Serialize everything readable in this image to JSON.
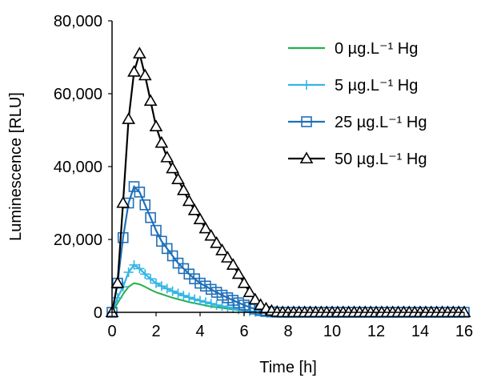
{
  "chart_data": {
    "type": "line",
    "title": "",
    "xlabel": "Time [h]",
    "ylabel": "Luminescence [RLU]",
    "xlim": [
      0,
      16
    ],
    "ylim": [
      0,
      80000
    ],
    "x_ticks": [
      0,
      2,
      4,
      6,
      8,
      10,
      12,
      14,
      16
    ],
    "x_tick_labels": [
      "0",
      "2",
      "4",
      "6",
      "8",
      "10",
      "12",
      "14",
      "16"
    ],
    "y_ticks": [
      0,
      20000,
      40000,
      60000,
      80000
    ],
    "y_tick_labels": [
      "0",
      "20,000",
      "40,000",
      "60,000",
      "80,000"
    ],
    "grid": false,
    "legend_position": "top-right",
    "x": [
      0,
      0.25,
      0.5,
      0.75,
      1,
      1.25,
      1.5,
      1.75,
      2,
      2.25,
      2.5,
      2.75,
      3,
      3.25,
      3.5,
      3.75,
      4,
      4.25,
      4.5,
      4.75,
      5,
      5.25,
      5.5,
      5.75,
      6,
      6.25,
      6.5,
      6.75,
      7,
      7.25,
      7.5,
      7.75,
      8,
      8.25,
      8.5,
      8.75,
      9,
      9.25,
      9.5,
      9.75,
      10,
      10.25,
      10.5,
      10.75,
      11,
      11.25,
      11.5,
      11.75,
      12,
      12.25,
      12.5,
      12.75,
      13,
      13.25,
      13.5,
      13.75,
      14,
      14.25,
      14.5,
      14.75,
      15,
      15.25,
      15.5,
      15.75,
      16
    ],
    "series": [
      {
        "name": "0 µg.L⁻¹ Hg",
        "color": "#22b14c",
        "marker": "none",
        "values": [
          0,
          2500,
          5000,
          7000,
          8000,
          7700,
          7000,
          6200,
          5500,
          5000,
          4500,
          4000,
          3600,
          3200,
          2800,
          2500,
          2200,
          1900,
          1600,
          1400,
          1200,
          1000,
          800,
          600,
          400,
          250,
          120,
          50,
          20,
          0,
          0,
          0,
          0,
          0,
          0,
          0,
          0,
          0,
          0,
          0,
          0,
          0,
          0,
          0,
          0,
          0,
          0,
          0,
          0,
          0,
          0,
          0,
          0,
          0,
          0,
          0,
          0,
          0,
          0,
          0,
          0,
          0,
          0,
          0,
          0
        ]
      },
      {
        "name": "5 µg.L⁻¹ Hg",
        "color": "#33b5e5",
        "marker": "plus",
        "values": [
          0,
          4000,
          7000,
          11000,
          13000,
          12000,
          10500,
          9200,
          8000,
          7200,
          6500,
          5800,
          5200,
          4600,
          4100,
          3600,
          3200,
          2800,
          2400,
          2000,
          1700,
          1400,
          1100,
          800,
          550,
          300,
          150,
          60,
          20,
          0,
          0,
          0,
          0,
          0,
          0,
          0,
          0,
          0,
          0,
          0,
          0,
          0,
          0,
          0,
          0,
          0,
          0,
          0,
          0,
          0,
          0,
          0,
          0,
          0,
          0,
          0,
          0,
          0,
          0,
          0,
          0,
          0,
          0,
          0,
          0
        ]
      },
      {
        "name": "25 µg.L⁻¹ Hg",
        "color": "#1f6fb8",
        "marker": "square",
        "values": [
          0,
          8000,
          20500,
          30000,
          34500,
          33000,
          29500,
          26000,
          22500,
          19500,
          17500,
          15500,
          13500,
          12000,
          10500,
          9200,
          8000,
          7200,
          6300,
          5500,
          4700,
          4000,
          3300,
          2600,
          2000,
          1400,
          900,
          500,
          250,
          100,
          30,
          0,
          0,
          0,
          0,
          0,
          0,
          0,
          0,
          0,
          0,
          0,
          0,
          0,
          0,
          0,
          0,
          0,
          0,
          0,
          0,
          0,
          0,
          0,
          0,
          0,
          0,
          0,
          0,
          0,
          0,
          0,
          0,
          0,
          0
        ]
      },
      {
        "name": "50 µg.L⁻¹ Hg",
        "color": "#000000",
        "marker": "triangle",
        "values": [
          0,
          8000,
          30000,
          53000,
          66000,
          71000,
          65000,
          58000,
          51000,
          46500,
          42500,
          39500,
          36500,
          33500,
          30500,
          28000,
          25500,
          23000,
          21000,
          19000,
          17000,
          15000,
          13000,
          10500,
          8000,
          5500,
          3500,
          2000,
          1000,
          400,
          100,
          0,
          0,
          0,
          0,
          0,
          0,
          0,
          0,
          0,
          0,
          0,
          0,
          0,
          0,
          0,
          0,
          0,
          0,
          0,
          0,
          0,
          0,
          0,
          0,
          0,
          0,
          0,
          0,
          0,
          0,
          0,
          0,
          0,
          0
        ]
      }
    ]
  }
}
